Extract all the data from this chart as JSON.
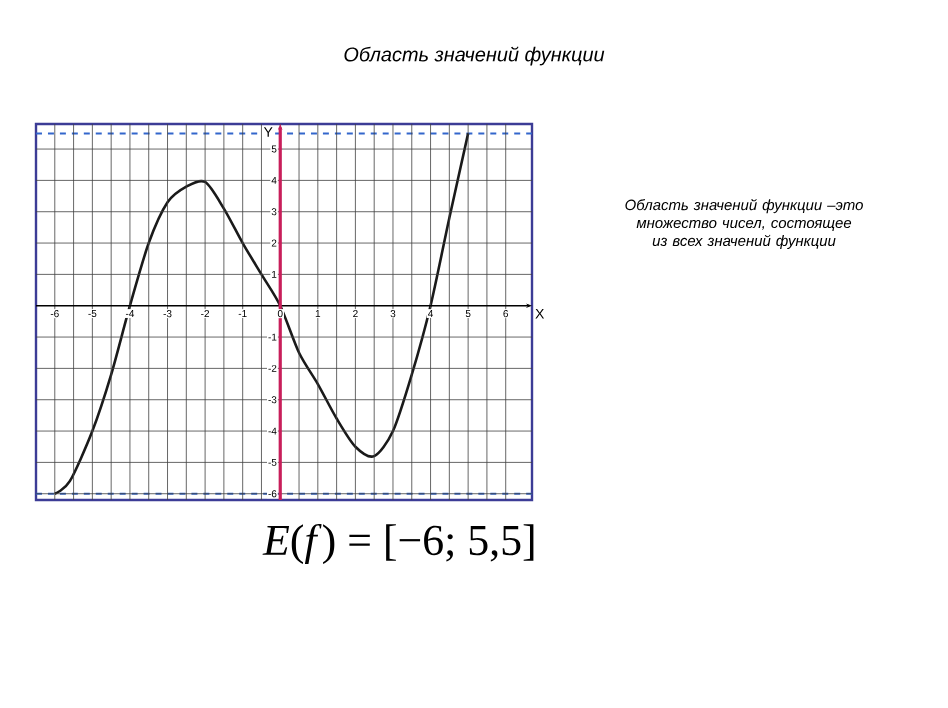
{
  "chart_data": {
    "type": "line",
    "title": "Область значений функции",
    "xlabel": "X",
    "ylabel": "Y",
    "x": [
      -6,
      -5.6,
      -5,
      -4.5,
      -4,
      -3.5,
      -3,
      -2.5,
      -2,
      -1.5,
      -1,
      -0.5,
      0,
      0.5,
      1,
      1.5,
      2,
      2.5,
      3,
      3.5,
      4,
      4.5,
      5
    ],
    "series": [
      {
        "color": "#1a1a1a",
        "values": [
          -6,
          -5.6,
          -4,
          -2.2,
          0,
          2,
          3.3,
          3.8,
          3.95,
          3.1,
          2,
          1,
          0,
          -1.5,
          -2.5,
          -3.6,
          -4.5,
          -4.8,
          -4,
          -2.2,
          0,
          2.8,
          5.5
        ]
      }
    ],
    "xlim": [
      -6.5,
      6.7
    ],
    "ylim": [
      -6.2,
      5.8
    ],
    "xticks": [
      -6,
      -5,
      -4,
      -3,
      -2,
      -1,
      0,
      1,
      2,
      3,
      4,
      5,
      6
    ],
    "yticks": [
      -6,
      -5,
      -4,
      -3,
      -2,
      -1,
      1,
      2,
      3,
      4,
      5
    ],
    "grid": true,
    "ref_lines": [
      {
        "axis": "y",
        "value": 5.5,
        "color": "#3366cc",
        "line_style": "dashed"
      },
      {
        "axis": "y",
        "value": -6,
        "color": "#3366cc",
        "line_style": "dashed"
      }
    ],
    "annotations": [
      "Область значений функции –это множество чисел, состоящее из всех значений функции",
      "*E*(*f*) = [−6; 5,5]"
    ]
  }
}
